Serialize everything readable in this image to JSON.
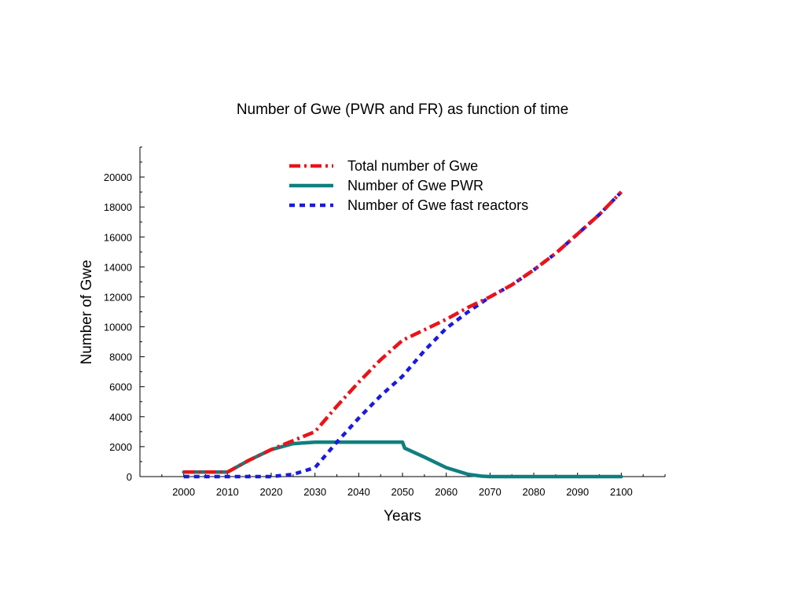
{
  "chart_data": {
    "type": "line",
    "title": "Number of Gwe (PWR and FR) as function of time",
    "xlabel": "Years",
    "ylabel": "Number of Gwe",
    "xlim": [
      1990,
      2110
    ],
    "ylim": [
      0,
      22000
    ],
    "xticks": [
      2000,
      2010,
      2020,
      2030,
      2040,
      2050,
      2060,
      2070,
      2080,
      2090,
      2100
    ],
    "yticks": [
      0,
      2000,
      4000,
      6000,
      8000,
      10000,
      12000,
      14000,
      16000,
      18000,
      20000
    ],
    "legend_position": "top-center",
    "grid": false,
    "series": [
      {
        "name": "Total number of Gwe",
        "color": "#e8141a",
        "style": "dash-dot",
        "x": [
          2000,
          2010,
          2015,
          2020,
          2025,
          2030,
          2035,
          2040,
          2045,
          2050,
          2055,
          2060,
          2065,
          2070,
          2075,
          2080,
          2085,
          2090,
          2095,
          2100
        ],
        "y": [
          300,
          300,
          1100,
          1800,
          2400,
          3000,
          4700,
          6300,
          7800,
          9100,
          9800,
          10500,
          11300,
          12000,
          12800,
          13800,
          14900,
          16200,
          17500,
          19000
        ]
      },
      {
        "name": "Number of Gwe PWR",
        "color": "#0f7f7f",
        "style": "solid",
        "x": [
          2000,
          2010,
          2015,
          2020,
          2025,
          2030,
          2035,
          2040,
          2045,
          2050,
          2050.5,
          2055,
          2060,
          2065,
          2068,
          2070,
          2075,
          2080,
          2085,
          2090,
          2095,
          2100
        ],
        "y": [
          300,
          300,
          1100,
          1800,
          2200,
          2300,
          2300,
          2300,
          2300,
          2300,
          1900,
          1300,
          600,
          150,
          30,
          0,
          0,
          0,
          0,
          0,
          0,
          0
        ]
      },
      {
        "name": "Number of Gwe fast reactors",
        "color": "#1a1ae0",
        "style": "dotted",
        "x": [
          2000,
          2010,
          2020,
          2025,
          2030,
          2035,
          2040,
          2045,
          2050,
          2055,
          2060,
          2065,
          2070,
          2075,
          2080,
          2085,
          2090,
          2095,
          2100
        ],
        "y": [
          0,
          0,
          0,
          150,
          600,
          2300,
          3900,
          5400,
          6700,
          8400,
          9900,
          11000,
          12000,
          12800,
          13800,
          14900,
          16200,
          17500,
          19000
        ]
      }
    ]
  }
}
